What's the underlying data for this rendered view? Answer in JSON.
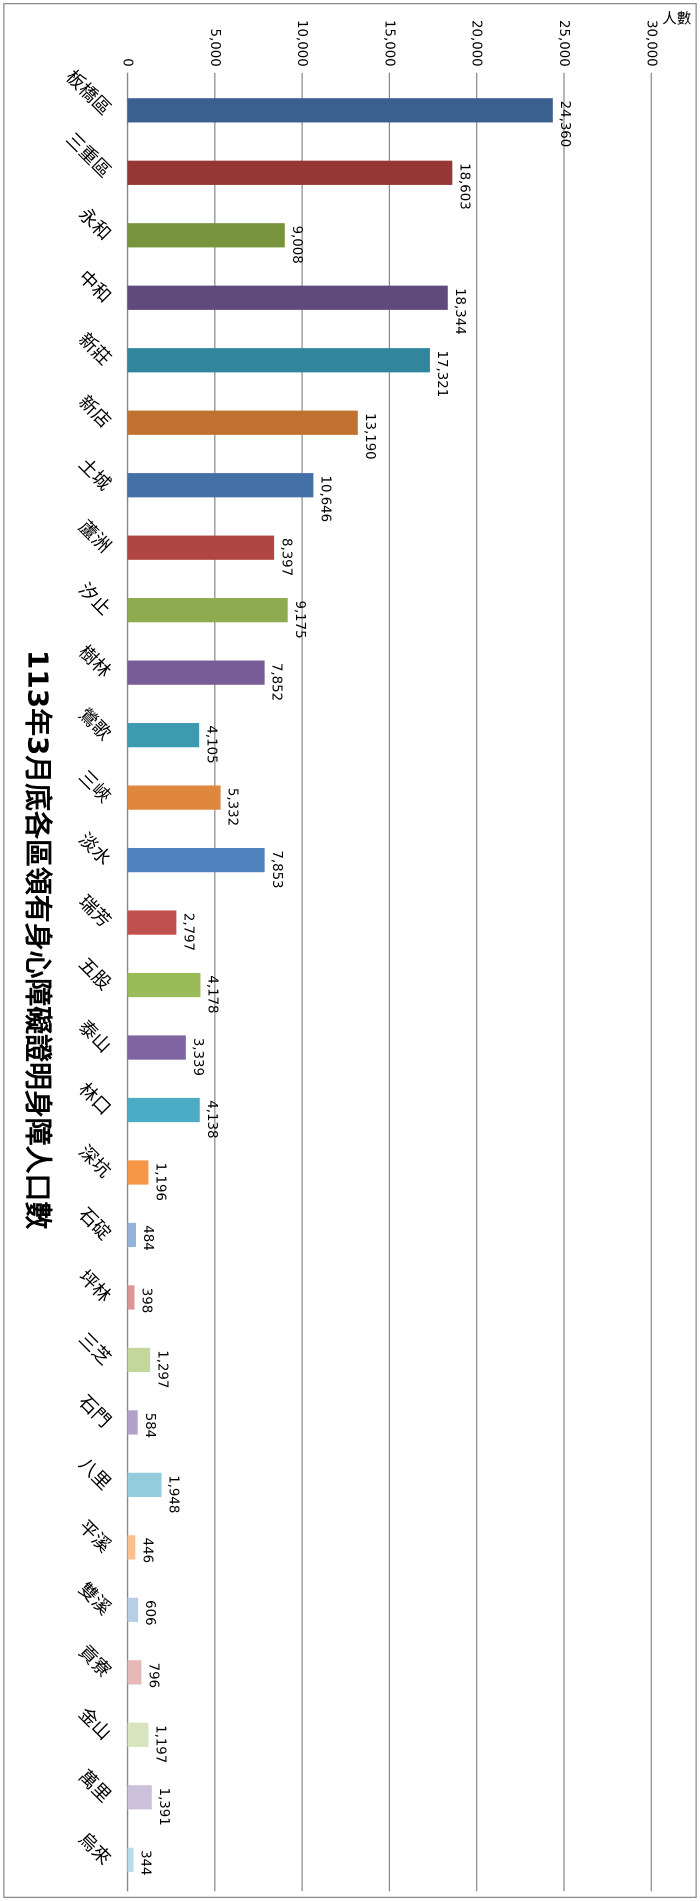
{
  "chart_data": {
    "type": "bar",
    "title": "113年3月底各區領有身心障礙證明身障人口數",
    "y_label": "人數",
    "categories": [
      "板橋區",
      "三重區",
      "永和",
      "中和",
      "新莊",
      "新店",
      "土城",
      "蘆洲",
      "汐止",
      "樹林",
      "鶯歌",
      "三峽",
      "淡水",
      "瑞芳",
      "五股",
      "泰山",
      "林口",
      "深坑",
      "石碇",
      "坪林",
      "三芝",
      "石門",
      "八里",
      "平溪",
      "雙溪",
      "貢寮",
      "金山",
      "萬里",
      "烏來"
    ],
    "values": [
      24360,
      18603,
      9008,
      18344,
      17321,
      13190,
      10646,
      8397,
      9175,
      7852,
      4105,
      5332,
      7853,
      2797,
      4178,
      3339,
      4138,
      1196,
      484,
      398,
      1297,
      584,
      1948,
      446,
      606,
      796,
      1197,
      1391,
      344
    ],
    "value_labels": [
      "24,360",
      "18,603",
      "9,008",
      "18,344",
      "17,321",
      "13,190",
      "10,646",
      "8,397",
      "9,175",
      "7,852",
      "4,105",
      "5,332",
      "7,853",
      "2,797",
      "4,178",
      "3,339",
      "4,138",
      "1,196",
      "484",
      "398",
      "1,297",
      "584",
      "1,948",
      "446",
      "606",
      "796",
      "1,197",
      "1,391",
      "344"
    ],
    "colors": [
      "#3B5F8F",
      "#953735",
      "#77933C",
      "#604A7B",
      "#31859C",
      "#C0702F",
      "#4470A8",
      "#B04643",
      "#8EAB4F",
      "#785C98",
      "#3C9BB0",
      "#E0873E",
      "#4F81BD",
      "#C0504D",
      "#9BBB59",
      "#8064A2",
      "#4BACC6",
      "#F79646",
      "#95B3D7",
      "#D99694",
      "#C3D69B",
      "#B3A2C7",
      "#93CDDD",
      "#FAC090",
      "#B9CDE5",
      "#E6B9B8",
      "#D7E4BD",
      "#CCC1DA",
      "#B7DEE8"
    ],
    "ylim": [
      0,
      30000
    ],
    "yticks": [
      0,
      {
        "value": 5000,
        "label": "5,000"
      },
      {
        "value": 10000,
        "label": "10,000"
      },
      {
        "value": 15000,
        "label": "15,000"
      },
      {
        "value": 20000,
        "label": "20,000"
      },
      {
        "value": 25000,
        "label": "25,000"
      },
      {
        "value": 30000,
        "label": "30,000"
      }
    ],
    "grid": true
  }
}
